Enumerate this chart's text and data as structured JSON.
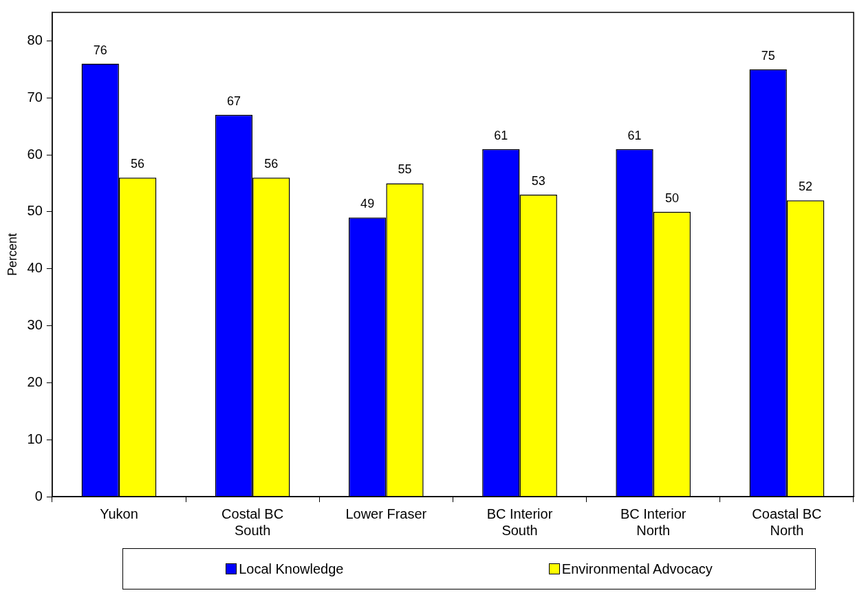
{
  "chart_data": {
    "type": "bar",
    "ylabel": "Percent",
    "categories": [
      "Yukon",
      "Costal BC South",
      "Lower Fraser",
      "BC Interior South",
      "BC Interior North",
      "Coastal BC North"
    ],
    "series": [
      {
        "name": "Local Knowledge",
        "color": "#0000ff",
        "values": [
          76,
          67,
          49,
          61,
          61,
          75
        ]
      },
      {
        "name": "Environmental Advocacy",
        "color": "#ffff00",
        "values": [
          56,
          56,
          55,
          53,
          50,
          52
        ]
      }
    ],
    "ylim": [
      0,
      85
    ],
    "yticks": [
      0,
      10,
      20,
      30,
      40,
      50,
      60,
      70,
      80
    ],
    "grid": false,
    "legend": "bottom",
    "data_labels": true
  }
}
